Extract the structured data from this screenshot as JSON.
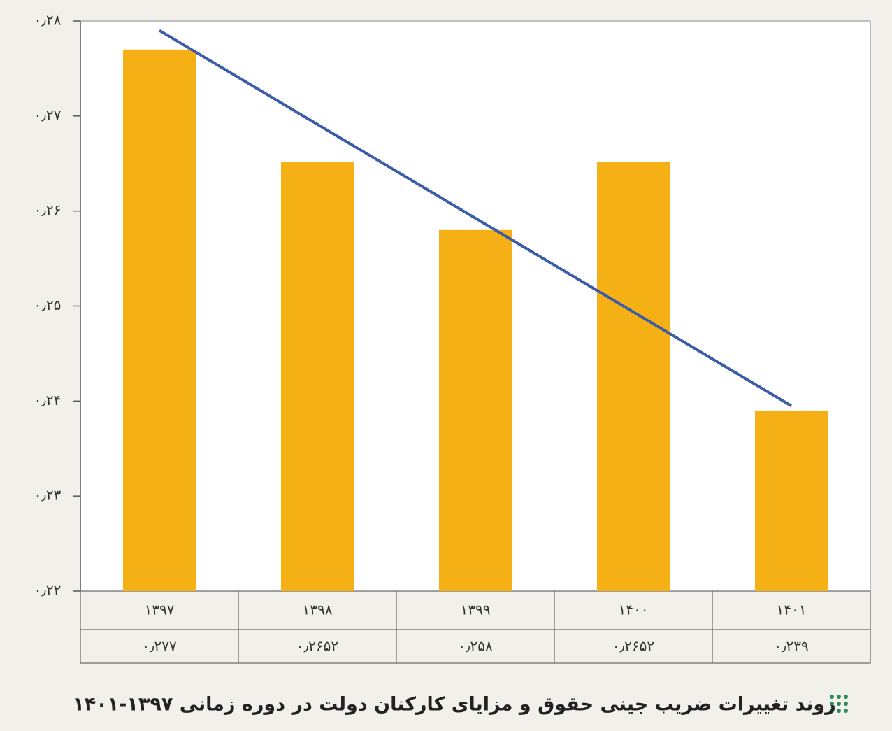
{
  "chart_data": {
    "type": "bar",
    "title": "روند تغییرات ضریب جینی حقوق و مزایای کارکنان دولت در دوره زمانی ۱۳۹۷-۱۴۰۱",
    "categories": [
      "۱۳۹۷",
      "۱۳۹۸",
      "۱۳۹۹",
      "۱۴۰۰",
      "۱۴۰۱"
    ],
    "values": [
      0.277,
      0.2652,
      0.258,
      0.2652,
      0.239
    ],
    "value_labels": [
      "۰٫۲۷۷",
      "۰٫۲۶۵۲",
      "۰٫۲۵۸",
      "۰٫۲۶۵۲",
      "۰٫۲۳۹"
    ],
    "color": "#f5b016",
    "trendline": {
      "color": "#3d5ca8",
      "values": [
        0.279,
        0.2395
      ]
    },
    "ylim": [
      0.22,
      0.28
    ],
    "yticks": [
      {
        "value": 0.22,
        "label": "۰٫۲۲"
      },
      {
        "value": 0.23,
        "label": "۰٫۲۳"
      },
      {
        "value": 0.24,
        "label": "۰٫۲۴"
      },
      {
        "value": 0.25,
        "label": "۰٫۲۵"
      },
      {
        "value": 0.26,
        "label": "۰٫۲۶"
      },
      {
        "value": 0.27,
        "label": "۰٫۲۷"
      },
      {
        "value": 0.28,
        "label": "۰٫۲۸"
      }
    ],
    "grid": false
  }
}
